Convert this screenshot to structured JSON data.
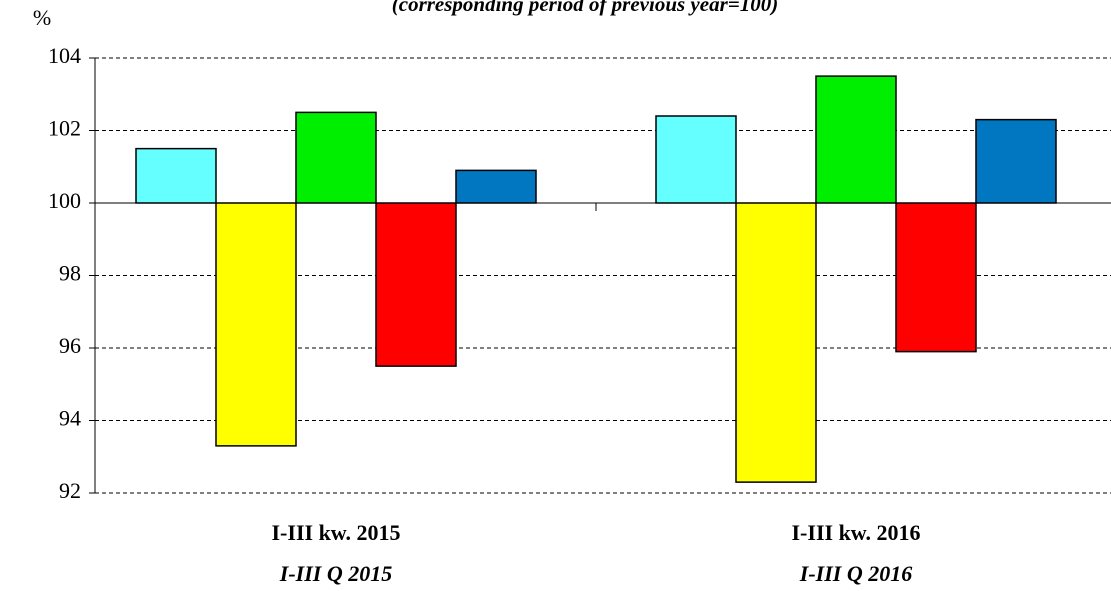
{
  "chart_data": {
    "type": "bar",
    "subtitle": "(corresponding period of previous year=100)",
    "y_label": "%",
    "categories": [
      "I-III kw. 2015",
      "I-III kw. 2016"
    ],
    "category_sublabels": [
      "I-III Q 2015",
      "I-III Q 2016"
    ],
    "series": [
      {
        "color": "#66ffff",
        "values": [
          101.5,
          102.4
        ]
      },
      {
        "color": "#ffff00",
        "values": [
          93.3,
          92.3
        ]
      },
      {
        "color": "#00ee00",
        "values": [
          102.5,
          103.5
        ]
      },
      {
        "color": "#ff0000",
        "values": [
          95.5,
          95.9
        ]
      },
      {
        "color": "#0077c0",
        "values": [
          100.9,
          102.3
        ]
      }
    ],
    "base": 100,
    "ylim": [
      92,
      104
    ],
    "yticks": [
      92,
      94,
      96,
      98,
      100,
      102,
      104
    ],
    "grid": true
  }
}
